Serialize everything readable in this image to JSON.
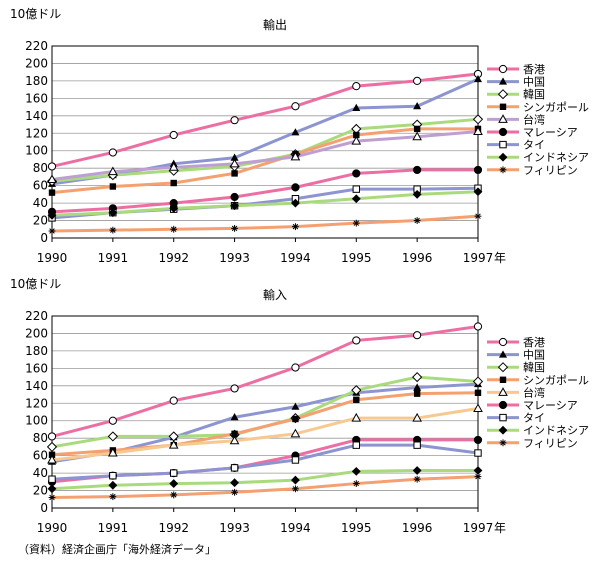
{
  "unit_label": "10億ドル",
  "x_unit": "年",
  "source": "（資料）経済企画庁「海外経済データ」",
  "chart_data": [
    {
      "type": "line",
      "title": "輸出",
      "ylabel": "10億ドル",
      "xlabel": "年",
      "ylim": [
        0,
        220
      ],
      "yticks": [
        0,
        20,
        40,
        60,
        80,
        100,
        120,
        140,
        160,
        180,
        200,
        220
      ],
      "x": [
        1990,
        1991,
        1992,
        1993,
        1994,
        1995,
        1996,
        1997
      ],
      "grid": true,
      "legend_position": "right",
      "series": [
        {
          "name": "香港",
          "color": "#ec6ea3",
          "marker": "circle-open",
          "values": [
            82,
            98,
            118,
            135,
            151,
            174,
            180,
            188
          ]
        },
        {
          "name": "中国",
          "color": "#8c94d1",
          "marker": "triangle-filled",
          "values": [
            62,
            72,
            85,
            92,
            121,
            149,
            151,
            182
          ]
        },
        {
          "name": "韓国",
          "color": "#a9db7d",
          "marker": "diamond-open",
          "values": [
            65,
            72,
            77,
            82,
            96,
            125,
            130,
            136
          ]
        },
        {
          "name": "シンガポール",
          "color": "#f5a070",
          "marker": "square-filled",
          "values": [
            52,
            59,
            63,
            74,
            96,
            118,
            125,
            125
          ]
        },
        {
          "name": "台湾",
          "color": "#bf9fd2",
          "marker": "triangle-open",
          "values": [
            67,
            76,
            81,
            85,
            93,
            111,
            116,
            122
          ]
        },
        {
          "name": "マレーシア",
          "color": "#ec6ea3",
          "marker": "circle-filled",
          "values": [
            30,
            34,
            40,
            47,
            58,
            74,
            78,
            78
          ]
        },
        {
          "name": "タイ",
          "color": "#8c94d1",
          "marker": "square-open",
          "values": [
            23,
            29,
            33,
            37,
            45,
            56,
            56,
            57
          ]
        },
        {
          "name": "インドネシア",
          "color": "#a9db7d",
          "marker": "diamond-filled",
          "values": [
            26,
            29,
            34,
            37,
            40,
            45,
            50,
            53
          ]
        },
        {
          "name": "フィリピン",
          "color": "#f5a070",
          "marker": "star",
          "values": [
            8,
            9,
            10,
            11,
            13,
            17,
            20,
            25
          ]
        }
      ]
    },
    {
      "type": "line",
      "title": "輸入",
      "ylabel": "10億ドル",
      "xlabel": "年",
      "ylim": [
        0,
        220
      ],
      "yticks": [
        0,
        20,
        40,
        60,
        80,
        100,
        120,
        140,
        160,
        180,
        200,
        220
      ],
      "x": [
        1990,
        1991,
        1992,
        1993,
        1994,
        1995,
        1996,
        1997
      ],
      "grid": true,
      "legend_position": "right",
      "series": [
        {
          "name": "香港",
          "color": "#ec6ea3",
          "marker": "circle-open",
          "values": [
            82,
            100,
            123,
            137,
            161,
            192,
            198,
            208
          ]
        },
        {
          "name": "中国",
          "color": "#8c94d1",
          "marker": "triangle-filled",
          "values": [
            53,
            64,
            81,
            104,
            116,
            132,
            138,
            142
          ]
        },
        {
          "name": "韓国",
          "color": "#a9db7d",
          "marker": "diamond-open",
          "values": [
            70,
            82,
            82,
            84,
            103,
            135,
            150,
            145
          ]
        },
        {
          "name": "シンガポール",
          "color": "#f5a070",
          "marker": "square-filled",
          "values": [
            61,
            66,
            72,
            85,
            102,
            124,
            131,
            132
          ]
        },
        {
          "name": "台湾",
          "color": "#f7c98f",
          "marker": "triangle-open",
          "values": [
            55,
            63,
            72,
            77,
            85,
            103,
            103,
            114
          ]
        },
        {
          "name": "マレーシア",
          "color": "#ec6ea3",
          "marker": "circle-filled",
          "values": [
            30,
            37,
            40,
            46,
            60,
            78,
            78,
            78
          ]
        },
        {
          "name": "タイ",
          "color": "#8c94d1",
          "marker": "square-open",
          "values": [
            33,
            37,
            40,
            46,
            55,
            72,
            72,
            63
          ]
        },
        {
          "name": "インドネシア",
          "color": "#a9db7d",
          "marker": "diamond-filled",
          "values": [
            22,
            26,
            28,
            29,
            32,
            42,
            43,
            43
          ]
        },
        {
          "name": "フィリピン",
          "color": "#f5a070",
          "marker": "star",
          "values": [
            12,
            13,
            15,
            18,
            22,
            28,
            33,
            36
          ]
        }
      ]
    }
  ]
}
